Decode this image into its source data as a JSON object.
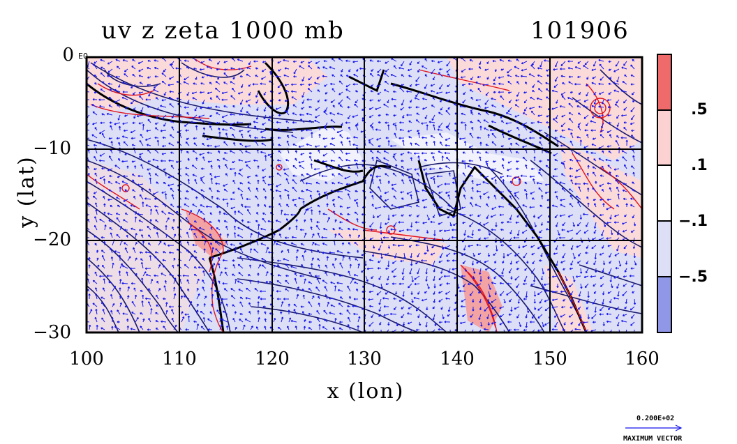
{
  "title": {
    "left": "uv z zeta 1000 mb",
    "right": "101906"
  },
  "map": {
    "xlabel": "x (lon)",
    "ylabel": "y (lat)",
    "x_ticks": [
      "100",
      "110",
      "120",
      "130",
      "140",
      "150",
      "160"
    ],
    "y_ticks": [
      "0",
      "−10",
      "−20",
      "−30"
    ],
    "y_tick_suffix": "E0",
    "x_range": [
      100,
      160
    ],
    "y_range": [
      -30,
      0
    ],
    "grid": true
  },
  "colorbar": {
    "labels": [
      ".5",
      ".1",
      "−.1",
      "−.5"
    ],
    "colors": [
      "#ef6b6b",
      "#fbd1d1",
      "#ffffff",
      "#dcdff6",
      "#8f97e6"
    ]
  },
  "shading_colors": {
    "positive": "#f3a3a3",
    "light_positive": "#fbdada",
    "light_negative": "#dcdff6"
  },
  "contour_colors": {
    "geopotential": "#1a1a6e",
    "vorticity": "#e0141e",
    "vectors": "#1515ee"
  },
  "vector_key": {
    "value": "0.200E+02",
    "label": "MAXIMUM VECTOR"
  }
}
